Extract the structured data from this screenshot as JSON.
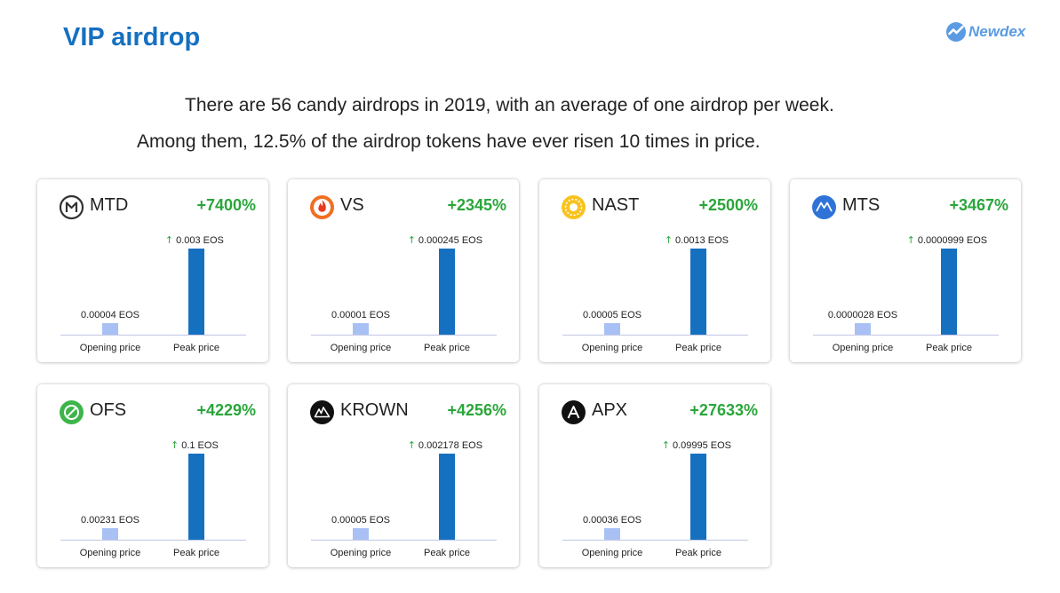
{
  "header": {
    "title": "VIP airdrop",
    "brand": "Newdex"
  },
  "intro": {
    "line1": "There are 56 candy airdrops in 2019, with an average of one airdrop per week.",
    "line2": "Among them,  12.5% of the airdrop tokens have ever risen 10 times in price."
  },
  "colors": {
    "title": "#1570c0",
    "gain": "#2aa63a",
    "opening_bar": "#a9c0f5",
    "peak_bar": "#1570c0"
  },
  "chart_data": [
    {
      "type": "bar",
      "token": "MTD",
      "gain": "+7400%",
      "icon": "mtd-logo-icon",
      "categories": [
        "Opening price",
        "Peak price"
      ],
      "value_labels": [
        "0.00004 EOS",
        "0.003 EOS"
      ],
      "values": [
        4e-05,
        0.003
      ]
    },
    {
      "type": "bar",
      "token": "VS",
      "gain": "+2345%",
      "icon": "vs-logo-icon",
      "categories": [
        "Opening price",
        "Peak price"
      ],
      "value_labels": [
        "0.00001 EOS",
        "0.000245 EOS"
      ],
      "values": [
        1e-05,
        0.000245
      ]
    },
    {
      "type": "bar",
      "token": "NAST",
      "gain": "+2500%",
      "icon": "nast-logo-icon",
      "categories": [
        "Opening price",
        "Peak price"
      ],
      "value_labels": [
        "0.00005 EOS",
        "0.0013 EOS"
      ],
      "values": [
        5e-05,
        0.0013
      ]
    },
    {
      "type": "bar",
      "token": "MTS",
      "gain": "+3467%",
      "icon": "mts-logo-icon",
      "categories": [
        "Opening price",
        "Peak price"
      ],
      "value_labels": [
        "0.0000028 EOS",
        "0.0000999 EOS"
      ],
      "values": [
        2.8e-06,
        9.99e-05
      ]
    },
    {
      "type": "bar",
      "token": "OFS",
      "gain": "+4229%",
      "icon": "ofs-logo-icon",
      "categories": [
        "Opening price",
        "Peak price"
      ],
      "value_labels": [
        "0.00231 EOS",
        "0.1 EOS"
      ],
      "values": [
        0.00231,
        0.1
      ]
    },
    {
      "type": "bar",
      "token": "KROWN",
      "gain": "+4256%",
      "icon": "krown-logo-icon",
      "categories": [
        "Opening price",
        "Peak price"
      ],
      "value_labels": [
        "0.00005 EOS",
        "0.002178 EOS"
      ],
      "values": [
        5e-05,
        0.002178
      ]
    },
    {
      "type": "bar",
      "token": "APX",
      "gain": "+27633%",
      "icon": "apx-logo-icon",
      "categories": [
        "Opening price",
        "Peak price"
      ],
      "value_labels": [
        "0.00036 EOS",
        "0.09995 EOS"
      ],
      "values": [
        0.00036,
        0.09995
      ]
    }
  ]
}
